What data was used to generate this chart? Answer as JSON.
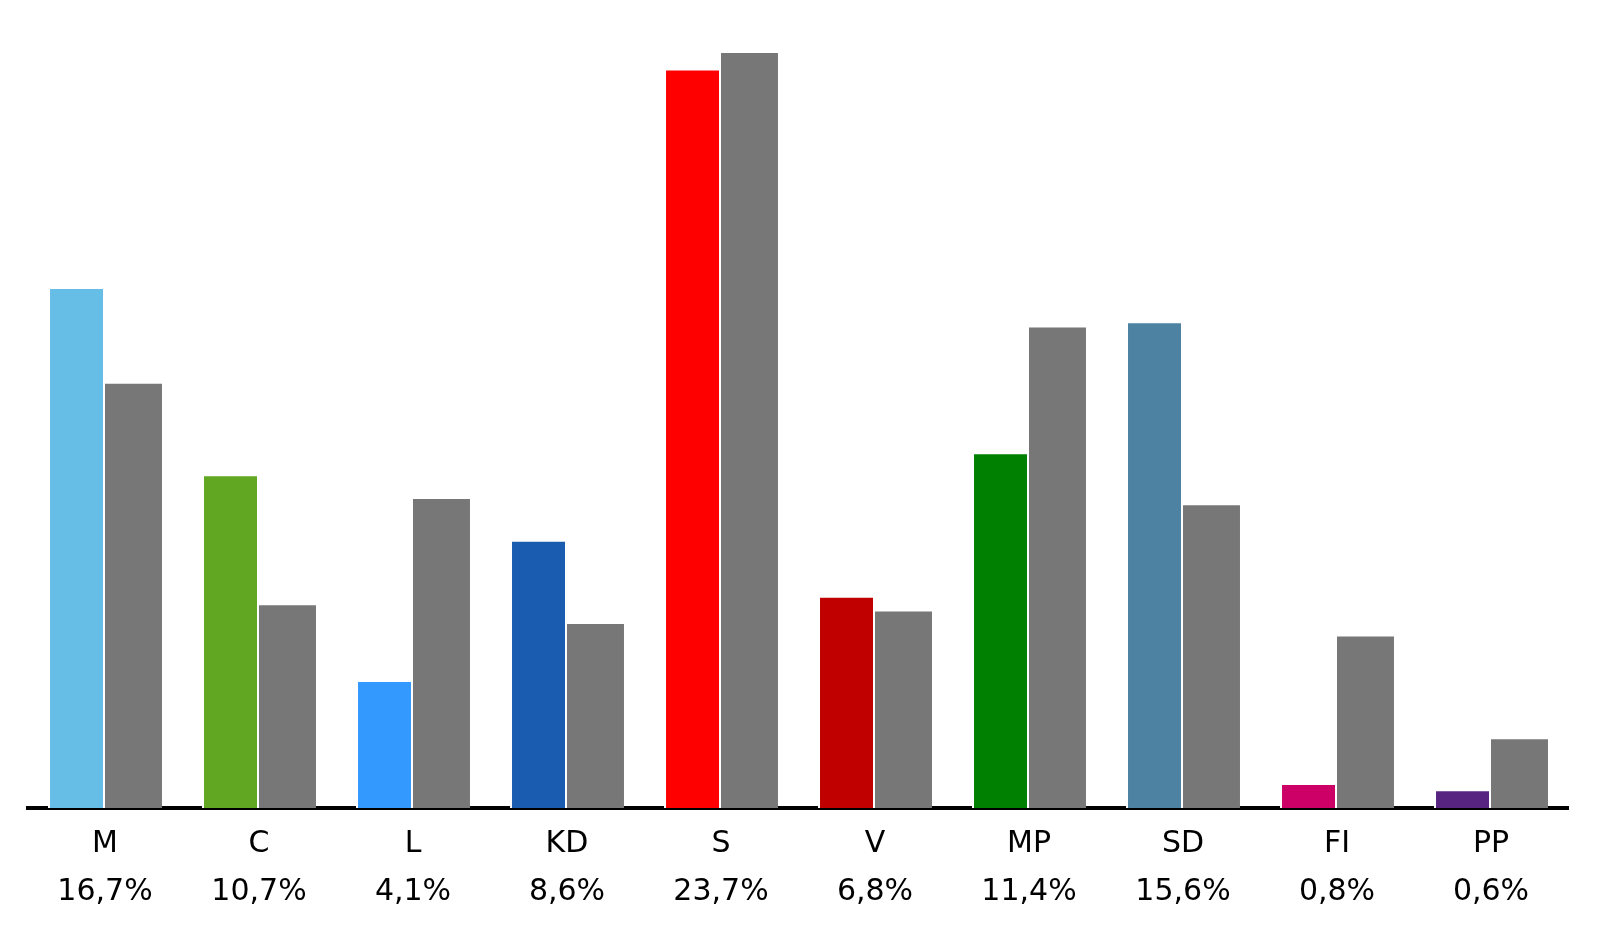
{
  "chart_data": {
    "type": "bar",
    "categories": [
      "M",
      "C",
      "L",
      "KD",
      "S",
      "V",
      "MP",
      "SD",
      "FI",
      "PP"
    ],
    "series": [
      {
        "colors": [
          "#66bee6",
          "#62a721",
          "#3399ff",
          "#1a5cb0",
          "#ff0000",
          "#c00000",
          "#008000",
          "#4d82a3",
          "#cc0066",
          "#572482"
        ],
        "values": [
          16.7,
          10.7,
          4.1,
          8.6,
          23.7,
          6.8,
          11.4,
          15.6,
          0.8,
          0.6
        ],
        "value_labels": [
          "16,7%",
          "10,7%",
          "4,1%",
          "8,6%",
          "23,7%",
          "6,8%",
          "11,4%",
          "15,6%",
          "0,8%",
          "0,6%"
        ]
      },
      {
        "color": "#777777",
        "values": [
          13.6,
          6.5,
          9.9,
          5.9,
          24.2,
          6.3,
          15.4,
          9.7,
          5.5,
          2.2
        ]
      }
    ]
  }
}
